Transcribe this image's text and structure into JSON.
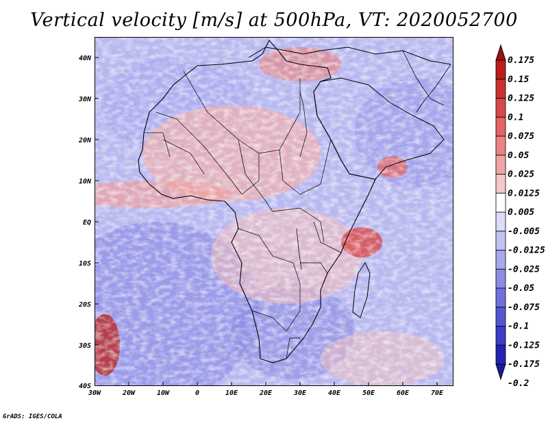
{
  "title": "Vertical velocity [m/s] at 500hPa, VT: 2020052700",
  "credit": "GrADS: IGES/COLA",
  "map": {
    "region": "Africa and surrounding oceans",
    "lon_range": [
      -30,
      75
    ],
    "lat_range": [
      -40,
      45
    ],
    "lon_ticks": [
      "30W",
      "20W",
      "10W",
      "0",
      "10E",
      "20E",
      "30E",
      "40E",
      "50E",
      "60E",
      "70E"
    ],
    "lat_ticks": [
      "40N",
      "30N",
      "20N",
      "10N",
      "EQ",
      "10S",
      "20S",
      "30S",
      "40S"
    ]
  },
  "colorbar": {
    "labels": [
      "0.175",
      "0.15",
      "0.125",
      "0.1",
      "0.075",
      "0.05",
      "0.025",
      "0.0125",
      "0.005",
      "-0.005",
      "-0.0125",
      "-0.025",
      "-0.05",
      "-0.075",
      "-0.1",
      "-0.125",
      "-0.175",
      "-0.2"
    ],
    "colors": [
      "#a01010",
      "#b81e1e",
      "#c93232",
      "#d84848",
      "#e26464",
      "#ea8484",
      "#f1a4a4",
      "#f7c6c6",
      "#ffffff",
      "#dcdcf8",
      "#c2c2f2",
      "#a8a8ec",
      "#8c8ce4",
      "#7070dc",
      "#5656d2",
      "#3c3cc4",
      "#2424b0",
      "#1a1a98"
    ]
  }
}
